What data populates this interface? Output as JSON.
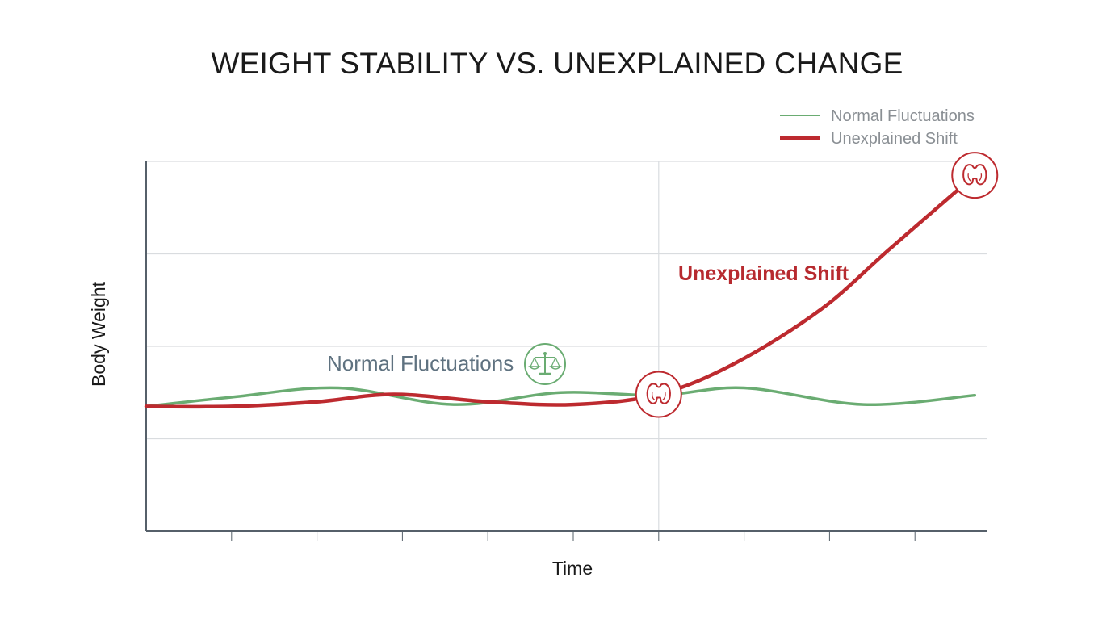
{
  "colors": {
    "normal": "#6aac72",
    "shift": "#bd2a2f",
    "grid": "#d9dcdf",
    "axis": "#56606a"
  },
  "chart_data": {
    "type": "line",
    "title": "WEIGHT STABILITY VS. UNEXPLAINED CHANGE",
    "xlabel": "Time",
    "ylabel": "Body Weight",
    "xlim": [
      0,
      9.8
    ],
    "ylim": [
      0,
      4
    ],
    "x_ticks": [
      0,
      1,
      2,
      3,
      4,
      5,
      6,
      7,
      8,
      9
    ],
    "y_gridlines": [
      1,
      2,
      3,
      4
    ],
    "grid": true,
    "vertical_marker_x": 6,
    "legend": {
      "placement": "top-right"
    },
    "series": [
      {
        "name": "Normal Fluctuations",
        "icon": "balance-scale-icon",
        "x": [
          0,
          1,
          2.25,
          3.6,
          4.85,
          6,
          7,
          8.4,
          9.7
        ],
        "y": [
          1.35,
          1.45,
          1.55,
          1.37,
          1.5,
          1.47,
          1.55,
          1.37,
          1.47
        ]
      },
      {
        "name": "Unexplained Shift",
        "icon": "thyroid-icon",
        "x": [
          0,
          1,
          2,
          2.9,
          4,
          5,
          6,
          6.9,
          7.9,
          8.7,
          9.7
        ],
        "y": [
          1.35,
          1.35,
          1.4,
          1.48,
          1.4,
          1.37,
          1.48,
          1.82,
          2.4,
          3.05,
          3.85
        ]
      }
    ],
    "annotations": [
      {
        "text": "Normal Fluctuations",
        "series": "Normal Fluctuations"
      },
      {
        "text": "Unexplained Shift",
        "series": "Unexplained Shift"
      }
    ],
    "markers": [
      {
        "series": "Unexplained Shift",
        "x": 6,
        "y": 1.48,
        "icon": "thyroid-icon"
      },
      {
        "series": "Unexplained Shift",
        "x": 9.7,
        "y": 3.85,
        "icon": "thyroid-icon"
      }
    ]
  }
}
